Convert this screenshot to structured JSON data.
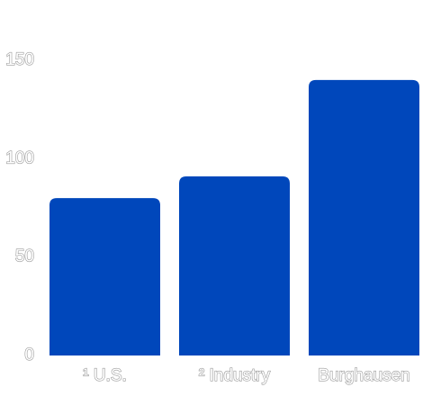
{
  "chart_data": {
    "type": "bar",
    "categories": [
      "¹ U.S.",
      "² Industry",
      "Burghausen"
    ],
    "values": [
      80,
      91,
      140
    ],
    "color": "#0047bb",
    "ylim": [
      0,
      150
    ],
    "yticks": [
      0,
      50,
      100,
      150
    ],
    "grid": false
  }
}
